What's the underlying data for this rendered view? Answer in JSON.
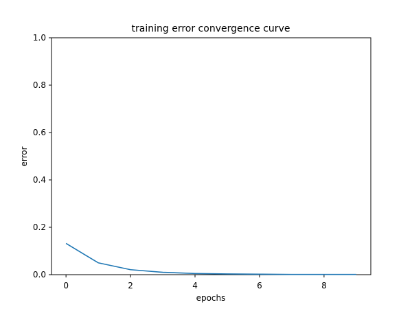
{
  "chart_data": {
    "type": "line",
    "title": "training error convergence curve",
    "xlabel": "epochs",
    "ylabel": "error",
    "xlim": [
      -0.45,
      9.45
    ],
    "ylim": [
      0,
      1.0
    ],
    "xticks": [
      0,
      2,
      4,
      6,
      8
    ],
    "yticks": [
      0.0,
      0.2,
      0.4,
      0.6,
      0.8,
      1.0
    ],
    "xtick_labels": [
      "0",
      "2",
      "4",
      "6",
      "8"
    ],
    "ytick_labels": [
      "0.0",
      "0.2",
      "0.4",
      "0.6",
      "0.8",
      "1.0"
    ],
    "grid": false,
    "series": [
      {
        "color": "#1f77b4",
        "x": [
          0,
          1,
          2,
          3,
          4,
          5,
          6,
          7,
          8,
          9
        ],
        "y": [
          0.132,
          0.05,
          0.021,
          0.01,
          0.005,
          0.003,
          0.002,
          0.001,
          0.001,
          0.001
        ]
      }
    ]
  }
}
